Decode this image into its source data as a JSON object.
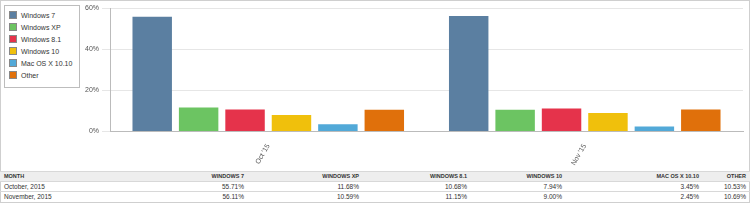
{
  "chart_data": {
    "type": "bar",
    "categories": [
      "Oct '15",
      "Nov '15"
    ],
    "series": [
      {
        "name": "Windows 7",
        "color": "#5b7fa1",
        "values": [
          55.71,
          56.11
        ]
      },
      {
        "name": "Windows XP",
        "color": "#6cc462",
        "values": [
          11.68,
          10.59
        ]
      },
      {
        "name": "Windows 8.1",
        "color": "#e5334b",
        "values": [
          10.68,
          11.15
        ]
      },
      {
        "name": "Windows 10",
        "color": "#f0c00c",
        "values": [
          7.94,
          9.0
        ]
      },
      {
        "name": "Mac OS X 10.10",
        "color": "#52a9d8",
        "values": [
          3.45,
          2.45
        ]
      },
      {
        "name": "Other",
        "color": "#e0700b",
        "values": [
          10.53,
          10.69
        ]
      }
    ],
    "ylim": [
      0,
      60
    ],
    "yticks": [
      {
        "value": 0,
        "label": "0%"
      },
      {
        "value": 20,
        "label": "20%"
      },
      {
        "value": 40,
        "label": "40%"
      },
      {
        "value": 60,
        "label": "60%"
      }
    ],
    "grid": true,
    "legend": "top-left"
  },
  "table": {
    "header": [
      "MONTH",
      "WINDOWS 7",
      "WINDOWS XP",
      "WINDOWS 8.1",
      "WINDOWS 10",
      "MAC OS X 10.10",
      "OTHER"
    ],
    "rows": [
      [
        "October, 2015",
        "55.71%",
        "11.68%",
        "10.68%",
        "7.94%",
        "3.45%",
        "10.53%"
      ],
      [
        "November, 2015",
        "56.11%",
        "10.59%",
        "11.15%",
        "9.00%",
        "2.45%",
        "10.69%"
      ]
    ]
  }
}
